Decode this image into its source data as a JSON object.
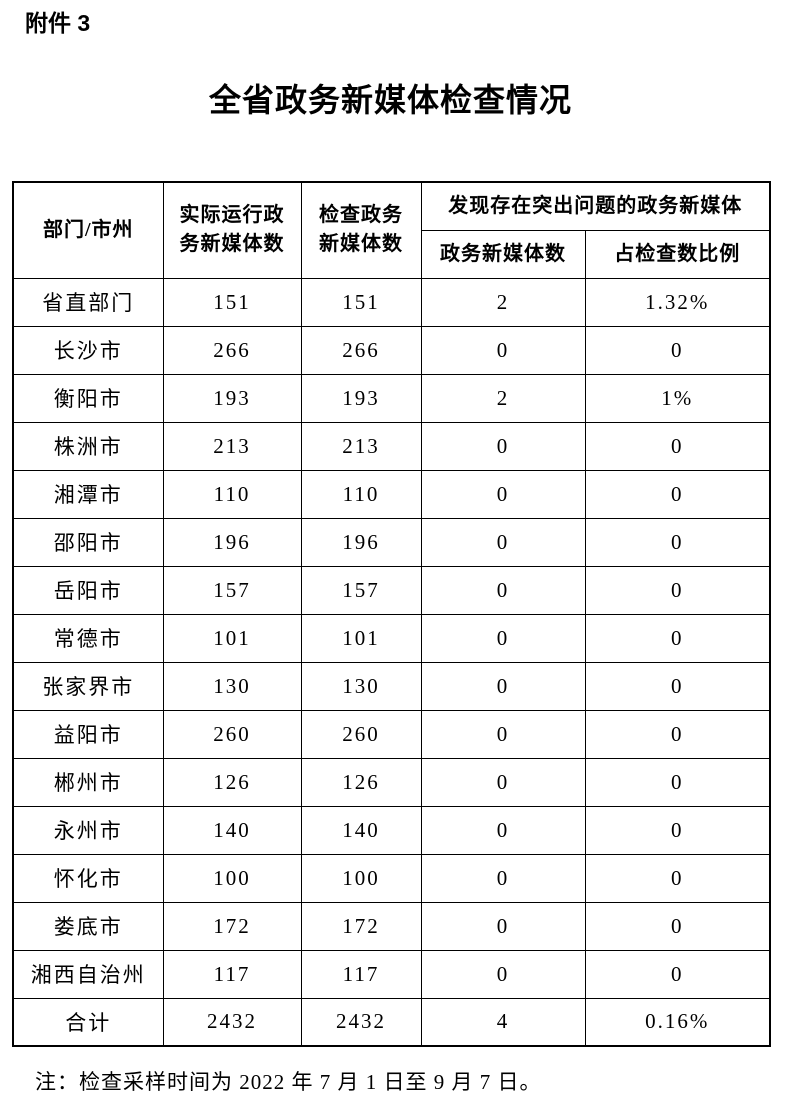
{
  "attachment_label": "附件 3",
  "title": "全省政务新媒体检查情况",
  "table": {
    "headers": {
      "department": "部门/市州",
      "actual_running": "实际运行政\n务新媒体数",
      "inspected": "检查政务\n新媒体数",
      "problem_group": "发现存在突出问题的政务新媒体",
      "problem_count": "政务新媒体数",
      "problem_ratio": "占检查数比例"
    },
    "rows": [
      {
        "department": "省直部门",
        "actual": "151",
        "inspected": "151",
        "problem_count": "2",
        "problem_ratio": "1.32%"
      },
      {
        "department": "长沙市",
        "actual": "266",
        "inspected": "266",
        "problem_count": "0",
        "problem_ratio": "0"
      },
      {
        "department": "衡阳市",
        "actual": "193",
        "inspected": "193",
        "problem_count": "2",
        "problem_ratio": "1%"
      },
      {
        "department": "株洲市",
        "actual": "213",
        "inspected": "213",
        "problem_count": "0",
        "problem_ratio": "0"
      },
      {
        "department": "湘潭市",
        "actual": "110",
        "inspected": "110",
        "problem_count": "0",
        "problem_ratio": "0"
      },
      {
        "department": "邵阳市",
        "actual": "196",
        "inspected": "196",
        "problem_count": "0",
        "problem_ratio": "0"
      },
      {
        "department": "岳阳市",
        "actual": "157",
        "inspected": "157",
        "problem_count": "0",
        "problem_ratio": "0"
      },
      {
        "department": "常德市",
        "actual": "101",
        "inspected": "101",
        "problem_count": "0",
        "problem_ratio": "0"
      },
      {
        "department": "张家界市",
        "actual": "130",
        "inspected": "130",
        "problem_count": "0",
        "problem_ratio": "0"
      },
      {
        "department": "益阳市",
        "actual": "260",
        "inspected": "260",
        "problem_count": "0",
        "problem_ratio": "0"
      },
      {
        "department": "郴州市",
        "actual": "126",
        "inspected": "126",
        "problem_count": "0",
        "problem_ratio": "0"
      },
      {
        "department": "永州市",
        "actual": "140",
        "inspected": "140",
        "problem_count": "0",
        "problem_ratio": "0"
      },
      {
        "department": "怀化市",
        "actual": "100",
        "inspected": "100",
        "problem_count": "0",
        "problem_ratio": "0"
      },
      {
        "department": "娄底市",
        "actual": "172",
        "inspected": "172",
        "problem_count": "0",
        "problem_ratio": "0"
      },
      {
        "department": "湘西自治州",
        "actual": "117",
        "inspected": "117",
        "problem_count": "0",
        "problem_ratio": "0"
      },
      {
        "department": "合计",
        "actual": "2432",
        "inspected": "2432",
        "problem_count": "4",
        "problem_ratio": "0.16%"
      }
    ]
  },
  "note": "注：检查采样时间为 2022 年 7 月 1 日至 9 月 7 日。"
}
